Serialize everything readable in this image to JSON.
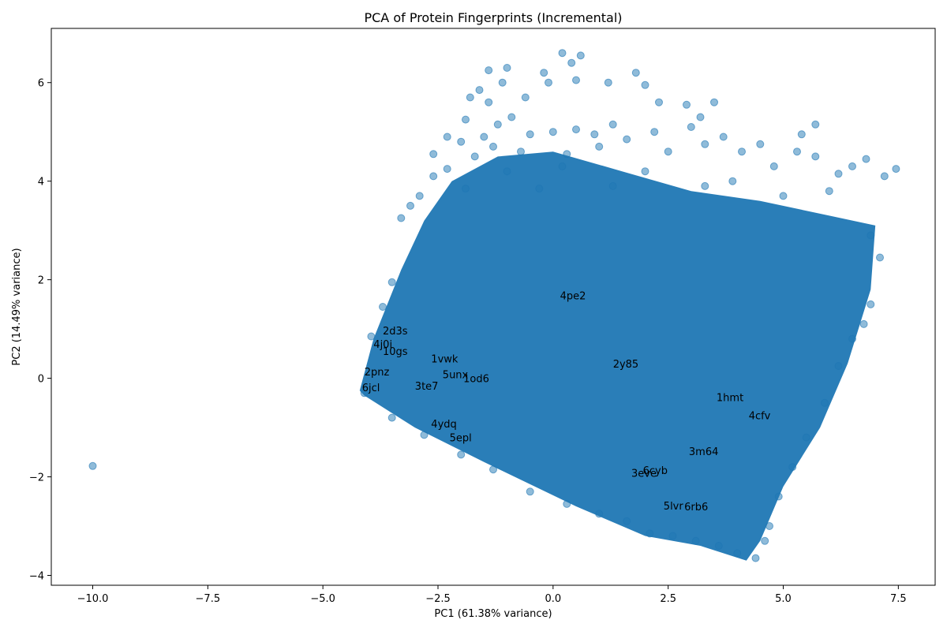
{
  "chart_data": {
    "type": "scatter",
    "title": "PCA of Protein Fingerprints (Incremental)",
    "xlabel": "PC1 (61.38% variance)",
    "ylabel": "PC2 (14.49% variance)",
    "xlim": [
      -10.9,
      8.3
    ],
    "ylim": [
      -4.2,
      7.1
    ],
    "xticks": [
      -10.0,
      -7.5,
      -5.0,
      -2.5,
      0.0,
      2.5,
      5.0,
      7.5
    ],
    "xtick_labels": [
      "−10.0",
      "−7.5",
      "−5.0",
      "−2.5",
      "0.0",
      "2.5",
      "5.0",
      "7.5"
    ],
    "yticks": [
      -4,
      -2,
      0,
      2,
      4,
      6
    ],
    "ytick_labels": [
      "−4",
      "−2",
      "0",
      "2",
      "4",
      "6"
    ],
    "grid": false,
    "color": "#1f77b4",
    "point_alpha": 0.5,
    "dense_region_outline": [
      [
        -4.2,
        -0.25
      ],
      [
        -3.9,
        0.8
      ],
      [
        -3.3,
        2.2
      ],
      [
        -2.8,
        3.2
      ],
      [
        -2.2,
        4.0
      ],
      [
        -1.2,
        4.5
      ],
      [
        0.0,
        4.6
      ],
      [
        1.5,
        4.2
      ],
      [
        3.0,
        3.8
      ],
      [
        4.5,
        3.6
      ],
      [
        6.0,
        3.3
      ],
      [
        7.0,
        3.1
      ],
      [
        6.9,
        1.8
      ],
      [
        6.4,
        0.3
      ],
      [
        5.8,
        -1.0
      ],
      [
        5.0,
        -2.2
      ],
      [
        4.5,
        -3.3
      ],
      [
        4.2,
        -3.7
      ],
      [
        3.2,
        -3.4
      ],
      [
        2.0,
        -3.2
      ],
      [
        0.5,
        -2.6
      ],
      [
        -1.5,
        -1.7
      ],
      [
        -3.0,
        -1.0
      ],
      [
        -4.1,
        -0.35
      ]
    ],
    "points": [
      [
        -10.0,
        -1.78
      ],
      [
        0.2,
        6.6
      ],
      [
        0.6,
        6.55
      ],
      [
        -1.4,
        6.25
      ],
      [
        -1.0,
        6.3
      ],
      [
        -0.2,
        6.2
      ],
      [
        0.4,
        6.4
      ],
      [
        1.8,
        6.2
      ],
      [
        1.2,
        6.0
      ],
      [
        -1.1,
        6.0
      ],
      [
        -0.1,
        6.0
      ],
      [
        2.0,
        5.95
      ],
      [
        0.5,
        6.05
      ],
      [
        -1.6,
        5.85
      ],
      [
        3.5,
        5.6
      ],
      [
        5.7,
        5.15
      ],
      [
        -1.8,
        5.7
      ],
      [
        -0.6,
        5.7
      ],
      [
        2.3,
        5.6
      ],
      [
        2.9,
        5.55
      ],
      [
        -1.4,
        5.6
      ],
      [
        -0.9,
        5.3
      ],
      [
        -1.9,
        5.25
      ],
      [
        -1.2,
        5.15
      ],
      [
        1.3,
        5.15
      ],
      [
        0.5,
        5.05
      ],
      [
        2.2,
        5.0
      ],
      [
        3.2,
        5.3
      ],
      [
        3.0,
        5.1
      ],
      [
        5.4,
        4.95
      ],
      [
        4.5,
        4.75
      ],
      [
        -2.3,
        4.9
      ],
      [
        -2.0,
        4.8
      ],
      [
        -1.5,
        4.9
      ],
      [
        -1.3,
        4.7
      ],
      [
        -0.5,
        4.95
      ],
      [
        0.0,
        5.0
      ],
      [
        0.9,
        4.95
      ],
      [
        1.6,
        4.85
      ],
      [
        3.7,
        4.9
      ],
      [
        4.1,
        4.6
      ],
      [
        -2.6,
        4.55
      ],
      [
        -1.7,
        4.5
      ],
      [
        -0.7,
        4.6
      ],
      [
        0.3,
        4.55
      ],
      [
        1.0,
        4.7
      ],
      [
        2.5,
        4.6
      ],
      [
        3.3,
        4.75
      ],
      [
        5.3,
        4.6
      ],
      [
        5.7,
        4.5
      ],
      [
        4.8,
        4.3
      ],
      [
        6.5,
        4.3
      ],
      [
        6.8,
        4.45
      ],
      [
        7.2,
        4.1
      ],
      [
        7.45,
        4.25
      ],
      [
        6.2,
        4.15
      ],
      [
        -3.3,
        3.25
      ],
      [
        -3.1,
        3.5
      ],
      [
        -2.9,
        3.7
      ],
      [
        -2.6,
        4.1
      ],
      [
        -2.3,
        4.25
      ],
      [
        6.9,
        2.9
      ],
      [
        7.1,
        2.45
      ],
      [
        6.9,
        1.5
      ],
      [
        6.75,
        1.1
      ],
      [
        6.5,
        0.8
      ],
      [
        6.2,
        0.25
      ],
      [
        5.9,
        -0.5
      ],
      [
        5.5,
        -1.2
      ],
      [
        5.2,
        -1.8
      ],
      [
        4.9,
        -2.4
      ],
      [
        4.7,
        -3.0
      ],
      [
        4.6,
        -3.3
      ],
      [
        4.4,
        -3.65
      ],
      [
        4.0,
        -3.55
      ],
      [
        3.6,
        -3.4
      ],
      [
        3.1,
        -3.3
      ],
      [
        2.6,
        -3.2
      ],
      [
        2.1,
        -3.15
      ],
      [
        1.6,
        -2.9
      ],
      [
        1.0,
        -2.75
      ],
      [
        0.3,
        -2.55
      ],
      [
        -0.5,
        -2.3
      ],
      [
        -1.3,
        -1.85
      ],
      [
        -2.0,
        -1.55
      ],
      [
        -2.8,
        -1.15
      ],
      [
        -3.5,
        -0.8
      ],
      [
        -4.1,
        -0.3
      ],
      [
        -3.95,
        0.85
      ],
      [
        -3.7,
        1.45
      ],
      [
        -3.5,
        1.95
      ],
      [
        3.9,
        4.0
      ],
      [
        2.0,
        4.2
      ],
      [
        0.2,
        4.3
      ],
      [
        -1.0,
        4.2
      ],
      [
        5.0,
        3.7
      ],
      [
        6.0,
        3.8
      ],
      [
        3.3,
        3.9
      ],
      [
        1.3,
        3.9
      ],
      [
        -0.3,
        3.85
      ],
      [
        -1.9,
        3.85
      ]
    ],
    "annotations": [
      {
        "text": "4pe2",
        "x": 0.15,
        "y": 1.68
      },
      {
        "text": "2d3s",
        "x": -3.7,
        "y": 0.97
      },
      {
        "text": "4j0i",
        "x": -3.9,
        "y": 0.7
      },
      {
        "text": "10gs",
        "x": -3.7,
        "y": 0.55
      },
      {
        "text": "1vwk",
        "x": -2.65,
        "y": 0.4
      },
      {
        "text": "2y85",
        "x": 1.3,
        "y": 0.3
      },
      {
        "text": "2pnz",
        "x": -4.1,
        "y": 0.14
      },
      {
        "text": "5unx",
        "x": -2.4,
        "y": 0.08
      },
      {
        "text": "1od6",
        "x": -1.95,
        "y": 0.0
      },
      {
        "text": "3te7",
        "x": -3.0,
        "y": -0.15
      },
      {
        "text": "6jcl",
        "x": -4.15,
        "y": -0.18
      },
      {
        "text": "1hmt",
        "x": 3.55,
        "y": -0.38
      },
      {
        "text": "4cfv",
        "x": 4.25,
        "y": -0.75
      },
      {
        "text": "4ydq",
        "x": -2.65,
        "y": -0.92
      },
      {
        "text": "5epl",
        "x": -2.25,
        "y": -1.2
      },
      {
        "text": "3m64",
        "x": 2.95,
        "y": -1.48
      },
      {
        "text": "6cyb",
        "x": 1.95,
        "y": -1.86
      },
      {
        "text": "3eve",
        "x": 1.7,
        "y": -1.92
      },
      {
        "text": "5lvr",
        "x": 2.4,
        "y": -2.58
      },
      {
        "text": "6rb6",
        "x": 2.85,
        "y": -2.6
      }
    ]
  }
}
